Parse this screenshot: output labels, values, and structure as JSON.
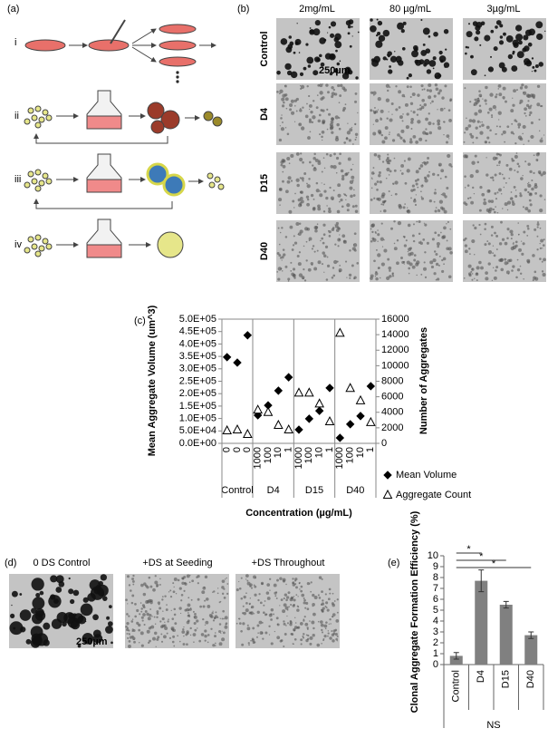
{
  "panels": {
    "a": {
      "label": "(a)",
      "rows": [
        "i",
        "ii",
        "iii",
        "iv"
      ]
    },
    "b": {
      "label": "(b)",
      "columns": [
        "2mg/mL",
        "80 µg/mL",
        "3µg/mL"
      ],
      "rows": [
        "Control",
        "D4",
        "D15",
        "D40"
      ],
      "scale_bar": "250µm"
    },
    "c": {
      "label": "(c)"
    },
    "d": {
      "label": "(d)",
      "columns": [
        "0 DS Control",
        "+DS at Seeding",
        "+DS Throughout"
      ],
      "scale_bar": "250µm"
    },
    "e": {
      "label": "(e)"
    }
  },
  "chart_data": [
    {
      "type": "dot",
      "y_label": "Mean Aggregate Volume (um^3)",
      "y2_label": "Number of Aggregates",
      "x_label": "Concentration (µg/mL)",
      "groups": [
        {
          "name": "Control",
          "categories": [
            "0",
            "0",
            "0"
          ]
        },
        {
          "name": "D4",
          "categories": [
            "1000",
            "100",
            "10",
            "1"
          ]
        },
        {
          "name": "D15",
          "categories": [
            "1000",
            "100",
            "10",
            "1"
          ]
        },
        {
          "name": "D40",
          "categories": [
            "1000",
            "100",
            "10",
            "1"
          ]
        }
      ],
      "series": [
        {
          "name": "Mean Volume",
          "marker": "diamond",
          "color": "#000000",
          "values": [
            347000,
            325000,
            435000,
            113000,
            153000,
            212000,
            266000,
            55000,
            99000,
            131000,
            223000,
            22000,
            77000,
            110000,
            230000
          ]
        },
        {
          "name": "Aggregate Count",
          "marker": "triangle",
          "color": "#ffffff",
          "axis": "y2",
          "values": [
            1640,
            1750,
            1170,
            4300,
            4000,
            2340,
            1750,
            6500,
            6500,
            5100,
            2800,
            14200,
            7100,
            5500,
            2700
          ]
        }
      ],
      "ylim": [
        0,
        500000
      ],
      "yticks": [
        {
          "value": 0,
          "label": "0.0E+00"
        },
        {
          "value": 50000,
          "label": "5.0E+04"
        },
        {
          "value": 100000,
          "label": "1.0E+05"
        },
        {
          "value": 150000,
          "label": "1.5E+05"
        },
        {
          "value": 200000,
          "label": "2.0E+05"
        },
        {
          "value": 250000,
          "label": "2.5E+05"
        },
        {
          "value": 300000,
          "label": "3.0E+05"
        },
        {
          "value": 350000,
          "label": "3.5E+05"
        },
        {
          "value": 400000,
          "label": "4.0E+05"
        },
        {
          "value": 450000,
          "label": "4.5E+05"
        },
        {
          "value": 500000,
          "label": "5.0E+05"
        }
      ],
      "y2lim": [
        0,
        16000
      ],
      "y2ticks": [
        0,
        2000,
        4000,
        6000,
        8000,
        10000,
        12000,
        14000,
        16000
      ],
      "legend": "right"
    },
    {
      "type": "bar",
      "y_label": "Clonal Aggregate Formation Efficiency (%)",
      "x_label": "NS",
      "categories": [
        "Control",
        "D4",
        "D15",
        "D40"
      ],
      "values": [
        0.8,
        7.7,
        5.5,
        2.7
      ],
      "errors": [
        0.3,
        1.0,
        0.3,
        0.3
      ],
      "color": "#808080",
      "ylim": [
        0,
        10
      ],
      "yticks": [
        0,
        1,
        2,
        3,
        4,
        5,
        6,
        7,
        8,
        9,
        10
      ],
      "significance": [
        "*",
        "*",
        "*"
      ]
    }
  ]
}
